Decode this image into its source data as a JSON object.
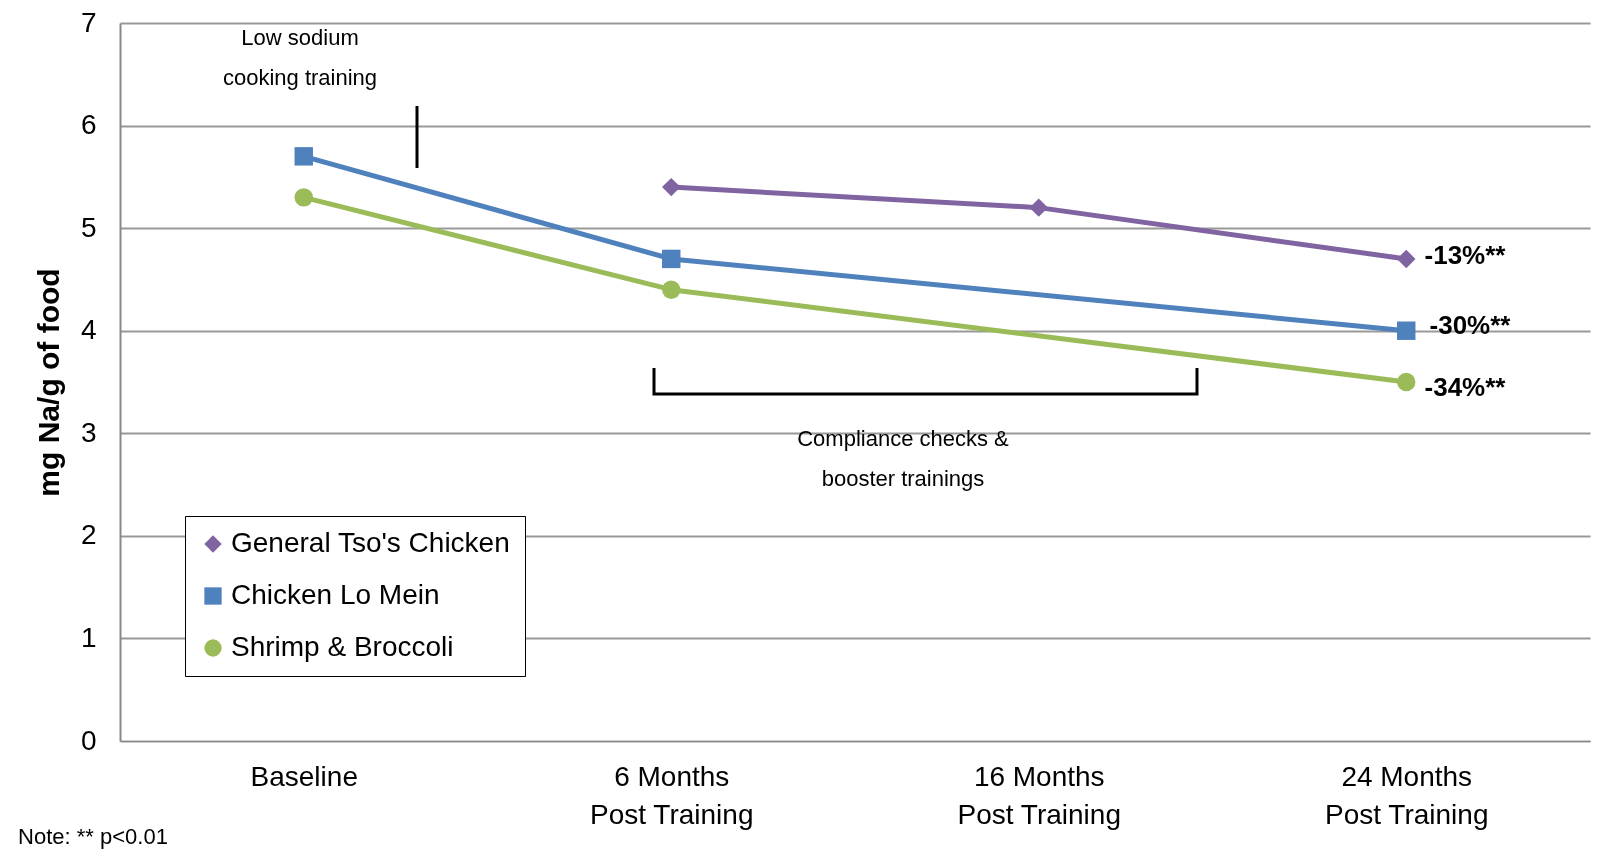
{
  "chart_data": {
    "type": "line",
    "ylabel": "mg Na/g of food",
    "categories": [
      "Baseline",
      "6 Months\nPost Training",
      "16 Months\nPost Training",
      "24 Months\nPost Training"
    ],
    "series": [
      {
        "name": "General Tso's Chicken",
        "color": "#8064a2",
        "marker": "diamond",
        "x": [
          "6 Months\nPost Training",
          "16 Months\nPost Training",
          "24 Months\nPost Training"
        ],
        "values": [
          5.4,
          5.2,
          4.7
        ]
      },
      {
        "name": "Chicken Lo Mein",
        "color": "#4f81bd",
        "marker": "square",
        "x": [
          "Baseline",
          "6 Months\nPost Training",
          "24 Months\nPost Training"
        ],
        "values": [
          5.7,
          4.7,
          4.0
        ]
      },
      {
        "name": "Shrimp & Broccoli",
        "color": "#9bbb59",
        "marker": "circle",
        "x": [
          "Baseline",
          "6 Months\nPost Training",
          "24 Months\nPost Training"
        ],
        "values": [
          5.3,
          4.4,
          3.5
        ]
      }
    ],
    "ylim": [
      0,
      7
    ],
    "yticks": [
      0,
      1,
      2,
      3,
      4,
      5,
      6,
      7
    ],
    "grid": "y",
    "legend": "bottom left",
    "annotations": [
      "Low sodium cooking training",
      "Compliance checks & booster trainings",
      "Note: ** p<0.01",
      "-13%**",
      "-30%**",
      "-34%**"
    ]
  }
}
